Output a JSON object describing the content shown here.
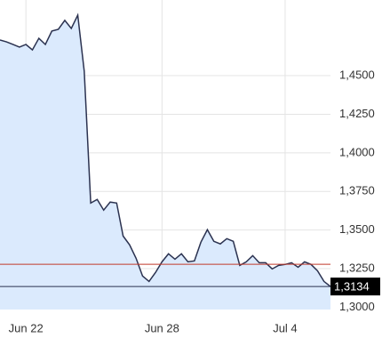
{
  "chart_data": {
    "type": "area",
    "categories": [
      null,
      null,
      null,
      null,
      "Jun 22",
      null,
      null,
      null,
      null,
      null,
      null,
      null,
      null,
      null,
      null,
      null,
      null,
      null,
      null,
      null,
      null,
      null,
      null,
      null,
      null,
      "Jun 28",
      null,
      null,
      null,
      null,
      null,
      null,
      null,
      null,
      null,
      null,
      null,
      null,
      null,
      null,
      null,
      null,
      null,
      null,
      "Jul 4",
      null,
      null,
      null,
      null,
      null,
      null,
      null
    ],
    "series": [
      {
        "color": "#2b3250",
        "fill": "#dbeafd",
        "values": [
          1.4731,
          1.4719,
          1.4702,
          1.4685,
          1.4702,
          1.4667,
          1.4742,
          1.4702,
          1.4789,
          1.48,
          1.4858,
          1.4806,
          1.4892,
          1.4529,
          1.3675,
          1.3698,
          1.3629,
          1.3681,
          1.3675,
          1.3461,
          1.3404,
          1.3317,
          1.3202,
          1.3167,
          1.3225,
          1.3294,
          1.3346,
          1.3311,
          1.3346,
          1.3294,
          1.33,
          1.3421,
          1.3502,
          1.3427,
          1.341,
          1.3444,
          1.3427,
          1.3271,
          1.3294,
          1.3334,
          1.3288,
          1.3288,
          1.3248,
          1.3271,
          1.3277,
          1.3288,
          1.3259,
          1.3294,
          1.3277,
          1.3236,
          1.3167,
          1.3134
        ]
      }
    ],
    "ylim": [
      1.2985,
      1.499
    ],
    "yticks": [
      {
        "value": 1.3,
        "label": "1,3000"
      },
      {
        "value": 1.325,
        "label": "1,3250"
      },
      {
        "value": 1.35,
        "label": "1,3500"
      },
      {
        "value": 1.375,
        "label": "1,3750"
      },
      {
        "value": 1.4,
        "label": "1,4000"
      },
      {
        "value": 1.425,
        "label": "1,4250"
      },
      {
        "value": 1.45,
        "label": "1,4500"
      }
    ],
    "grid": true,
    "reference_line": {
      "value": 1.3278,
      "color": "#c0392b"
    },
    "last_price": {
      "value": 1.3134,
      "label": "1,3134",
      "color": "#000000"
    }
  }
}
